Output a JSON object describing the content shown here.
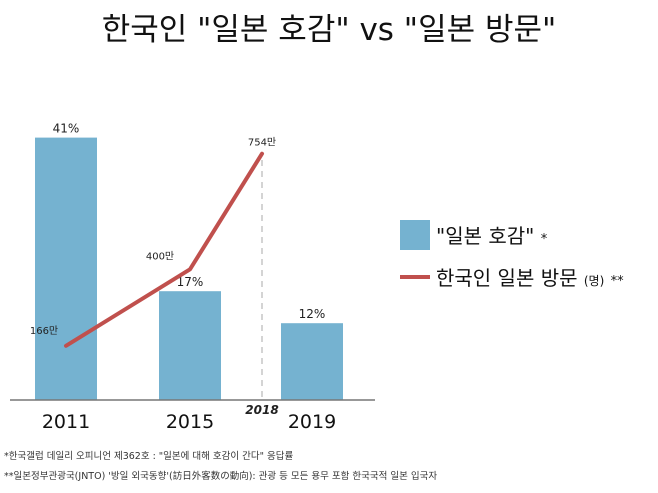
{
  "title": "한국인 \"일본 호감\" vs \"일본 방문\"",
  "colors": {
    "bar": "#75b2d0",
    "line": "#c0504d",
    "axis": "#777777",
    "dash": "#aaaaaa"
  },
  "chart_data": {
    "type": "bar",
    "categories": [
      "2011",
      "2015",
      "2019"
    ],
    "series": [
      {
        "name": "\"일본 호감\"",
        "marker": "*",
        "type": "bar",
        "values": [
          41,
          17,
          12
        ],
        "labels": [
          "41%",
          "17%",
          "12%"
        ]
      },
      {
        "name": "한국인 일본 방문",
        "name_suffix": "(명)",
        "marker": "**",
        "type": "line",
        "x": [
          "2011",
          "2015",
          "2018"
        ],
        "values": [
          166,
          400,
          754
        ],
        "labels": [
          "166만",
          "400만",
          "754만"
        ]
      }
    ],
    "extra_tick": "2018",
    "ylim": [
      0,
      45
    ],
    "line_ylim": [
      0,
      900
    ],
    "legend_position": "right",
    "grid": false
  },
  "footnotes": [
    "*한국갤럽 데일리 오피니언 제362호 : \"일본에 대해 호감이 간다\" 응답률",
    "**일본정부관광국(JNTO) '방일 외국동향'(訪日外客数の動向): 관광 등 모든 용무 포함 한국국적 일본 입국자"
  ]
}
